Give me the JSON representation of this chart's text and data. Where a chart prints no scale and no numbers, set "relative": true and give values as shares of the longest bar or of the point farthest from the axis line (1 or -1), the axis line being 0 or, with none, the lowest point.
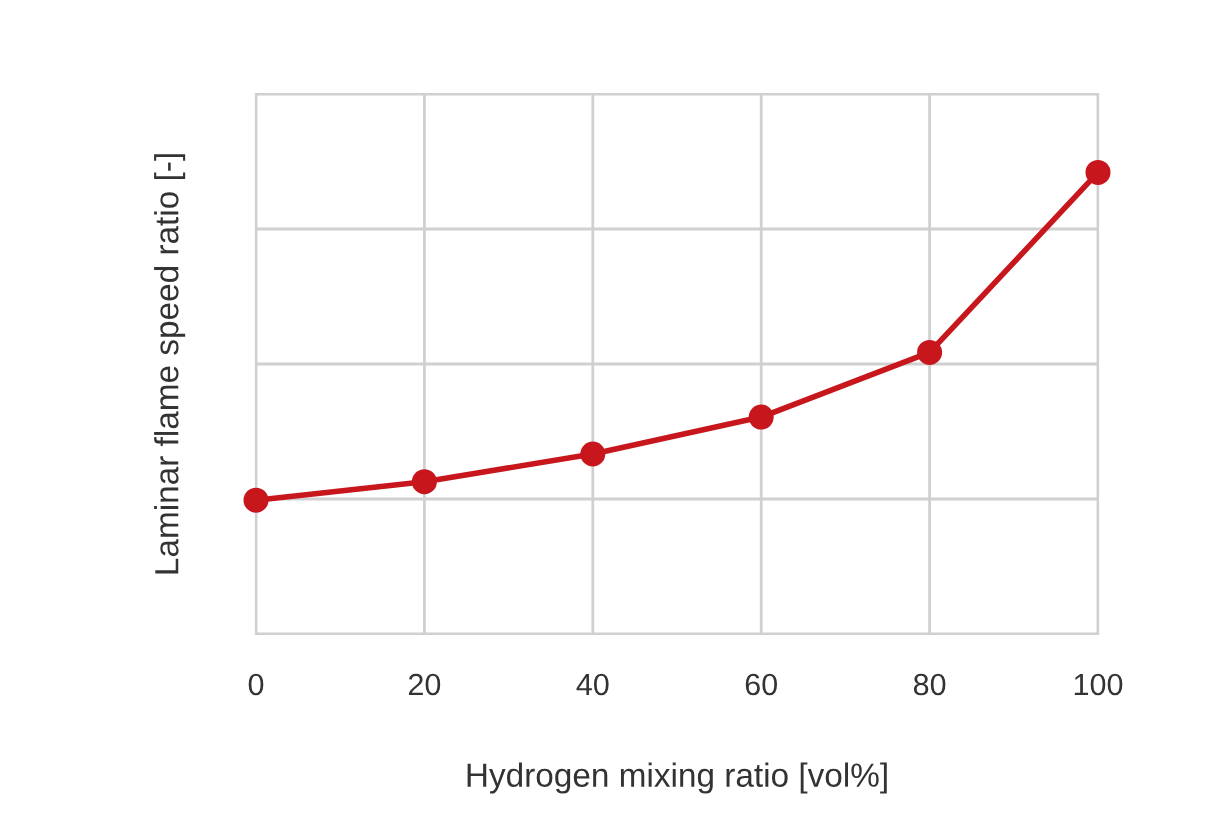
{
  "chart_data": {
    "type": "line",
    "xlabel": "Hydrogen mixing ratio [vol%]",
    "ylabel": "Laminar flame speed ratio [-]",
    "x": [
      0,
      20,
      40,
      60,
      80,
      100
    ],
    "xlim": [
      0,
      100
    ],
    "xticks": [
      0,
      20,
      40,
      60,
      80,
      100
    ],
    "relative": true,
    "grid": true,
    "marker": "circle",
    "line_style": "solid",
    "series": [
      {
        "color": "#c8161d",
        "values": [
          0.29,
          0.33,
          0.39,
          0.47,
          0.61,
          1
        ]
      }
    ]
  }
}
